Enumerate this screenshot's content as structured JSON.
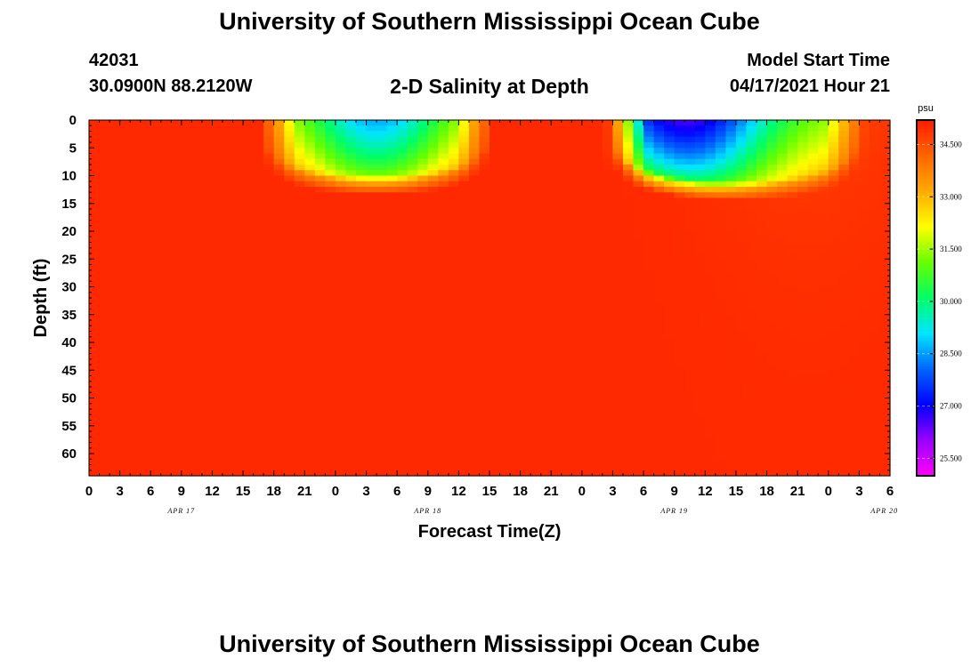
{
  "header": {
    "title": "University of Southern Mississippi Ocean Cube",
    "station_id": "42031",
    "coordinates": "30.0900N  88.2120W",
    "chart_title": "2-D Salinity at Depth",
    "model_start_label": "Model Start Time",
    "model_start_time": "04/17/2021 Hour 21"
  },
  "footer": {
    "title": "University of Southern Mississippi Ocean Cube"
  },
  "colors": {
    "background": "#ffffff",
    "colormap": [
      "#ff00ff",
      "#9900ff",
      "#0000ff",
      "#0066ff",
      "#00e5ff",
      "#00ff66",
      "#66ff00",
      "#ffff00",
      "#ffaa00",
      "#ff6600",
      "#ff1a00"
    ]
  },
  "chart_data": {
    "type": "heatmap",
    "title": "2-D Salinity at Depth",
    "xlabel": "Forecast Time(Z)",
    "ylabel": "Depth (ft)",
    "x_tick_labels": [
      "0",
      "3",
      "6",
      "9",
      "12",
      "15",
      "18",
      "21",
      "0",
      "3",
      "6",
      "9",
      "12",
      "15",
      "18",
      "21",
      "0",
      "3",
      "6",
      "9",
      "12",
      "15",
      "18",
      "21",
      "0",
      "3",
      "6"
    ],
    "date_labels": [
      "APR 17",
      "APR 18",
      "APR 19",
      "APR 20"
    ],
    "xlim_hours": [
      0,
      78
    ],
    "y_tick_labels": [
      "0",
      "5",
      "10",
      "15",
      "20",
      "25",
      "30",
      "35",
      "40",
      "45",
      "50",
      "55",
      "60"
    ],
    "ylim_ft": [
      0,
      64
    ],
    "y_inverted": true,
    "colorbar": {
      "unit": "psu",
      "tick_labels": [
        "34.500",
        "33.000",
        "31.500",
        "30.000",
        "28.500",
        "27.000",
        "25.500"
      ],
      "range": [
        25.0,
        35.2
      ]
    },
    "background_salinity_psu": 35.0,
    "low_salinity_events": [
      {
        "start_hour": 18,
        "end_hour": 38,
        "center_hour": 28,
        "min_surface_psu": 28.6,
        "bottom_depth_ft": 10
      },
      {
        "start_hour": 52,
        "end_hour": 74,
        "center_hour": 58,
        "min_surface_psu": 26.6,
        "bottom_depth_ft": 11
      }
    ]
  }
}
